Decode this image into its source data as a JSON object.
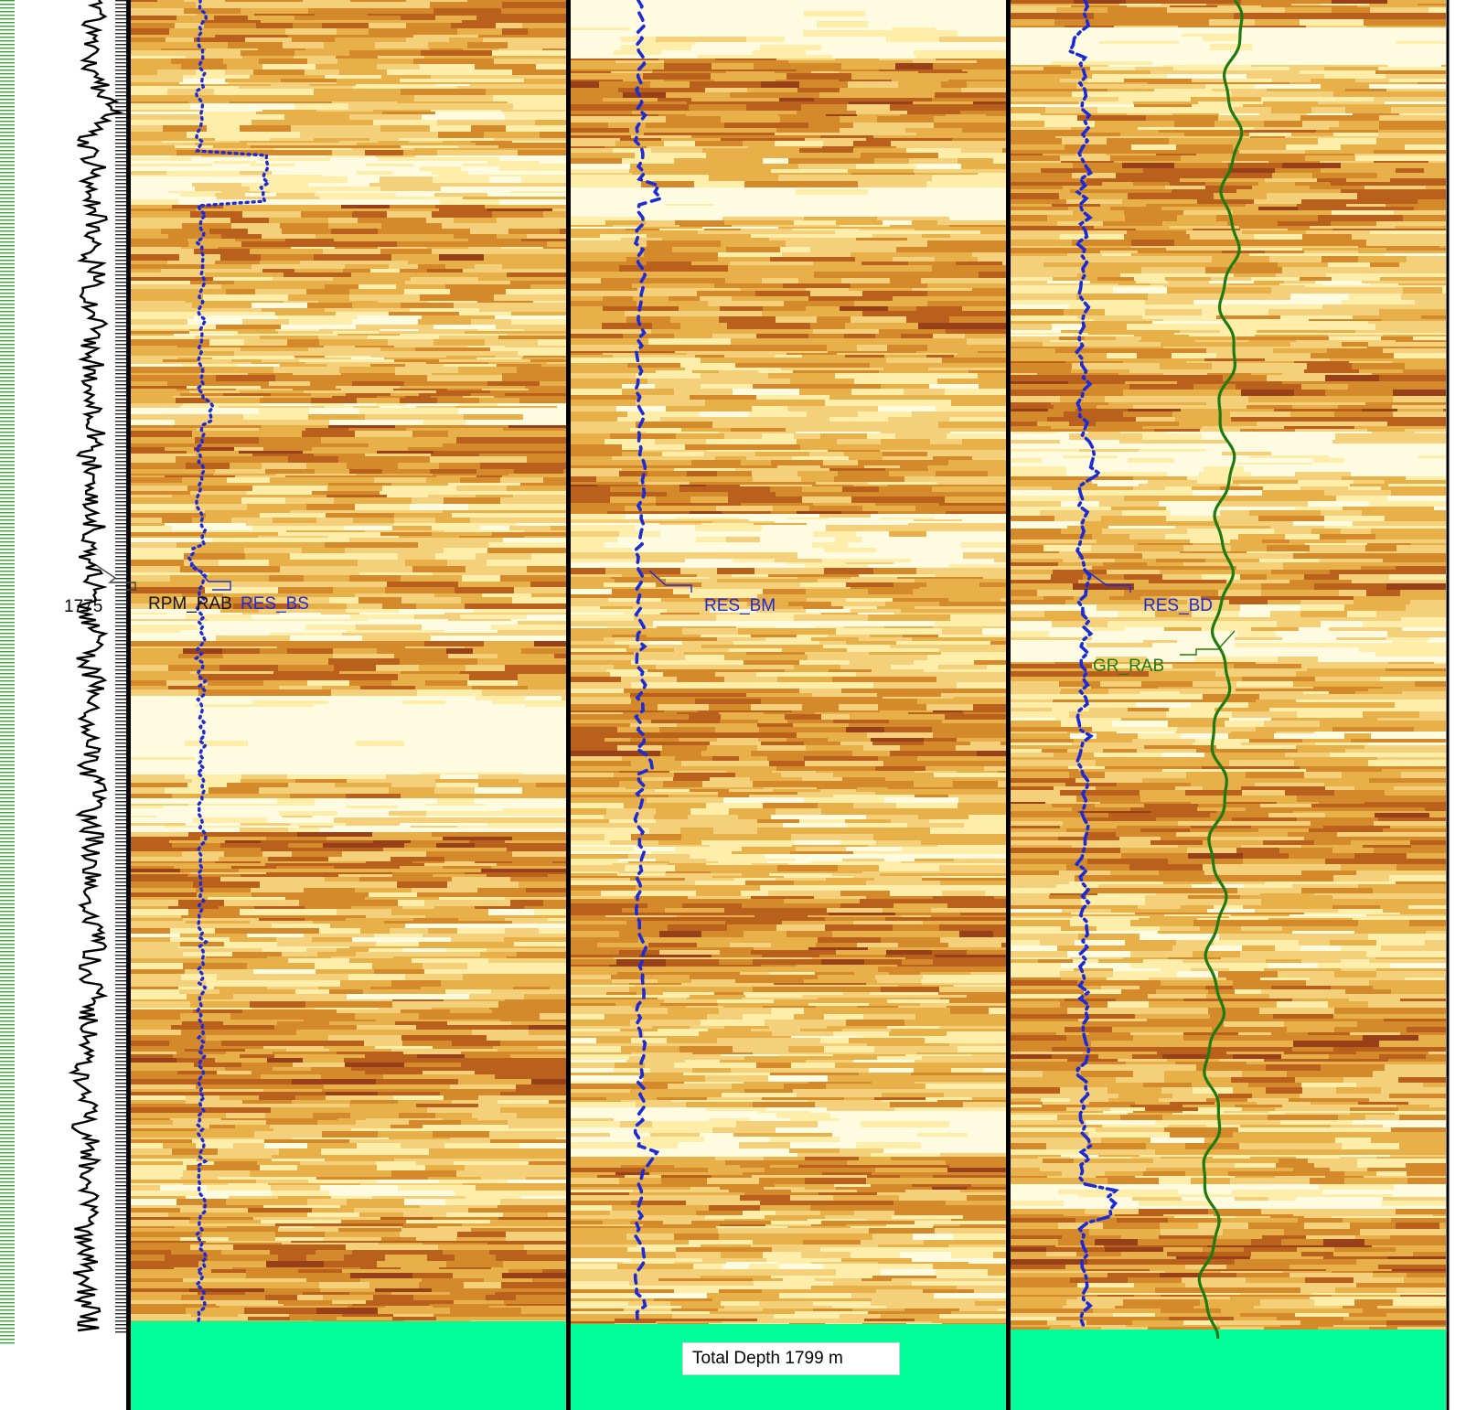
{
  "depth_label": "1775",
  "curves": {
    "rpm": "RPM_RAB",
    "res_bs": "RES_BS",
    "res_bm": "RES_BM",
    "res_bd": "RES_BD",
    "gr": "GR_RAB"
  },
  "total_depth": "Total Depth 1799 m",
  "colors": {
    "curve_blue": "#1c2bd8",
    "curve_green": "#1f7a10",
    "below_td": "#00ff99",
    "track_border": "#000000",
    "depth_tick_green": "#3aa23a"
  },
  "image_tracks": [
    {
      "name": "RES_BS image"
    },
    {
      "name": "RES_BM image"
    },
    {
      "name": "RES_BD image"
    }
  ]
}
